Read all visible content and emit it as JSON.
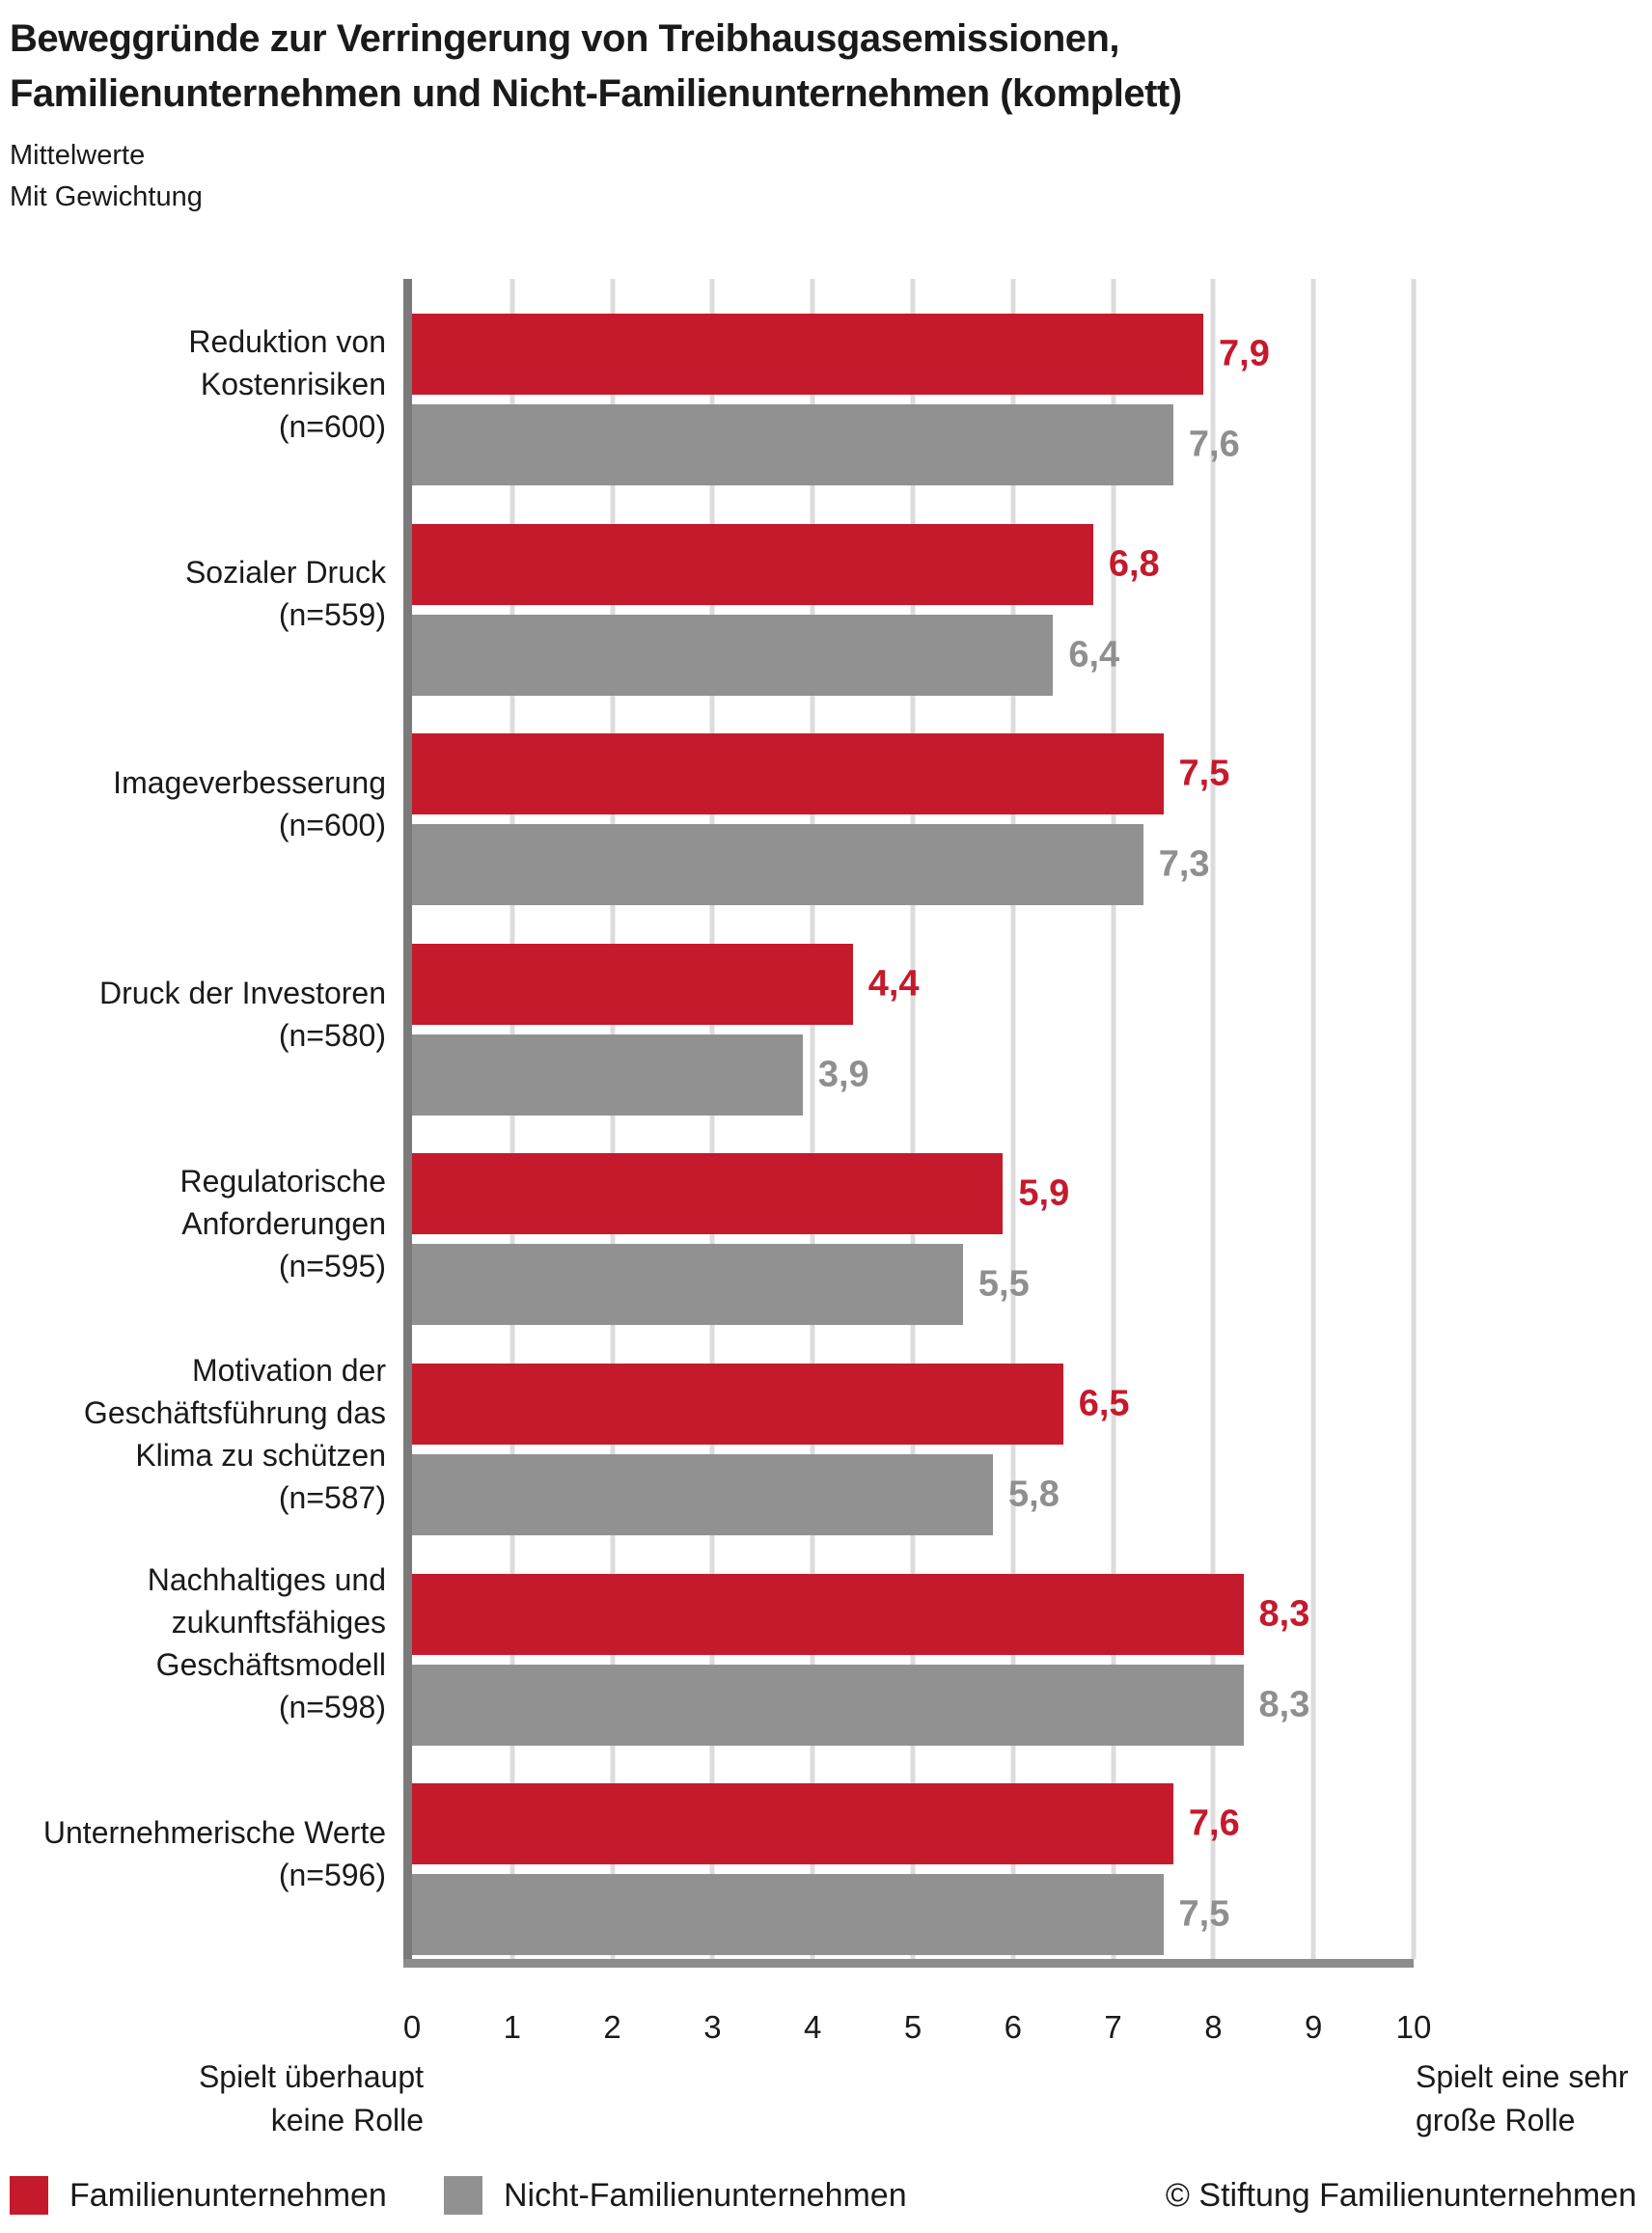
{
  "title": {
    "line1": "Beweggründe zur Verringerung von Treibhausgasemissionen,",
    "line2": "Familienunternehmen und Nicht-Familienunternehmen (komplett)"
  },
  "subtitle": {
    "line1": "Mittelwerte",
    "line2": "Mit Gewichtung"
  },
  "chart_data": {
    "type": "bar",
    "orientation": "horizontal",
    "xlim": [
      0,
      10
    ],
    "x_ticks": [
      "0",
      "1",
      "2",
      "3",
      "4",
      "5",
      "6",
      "7",
      "8",
      "9",
      "10"
    ],
    "grid": true,
    "legend_position": "bottom",
    "axis_caption_left": [
      "Spielt überhaupt",
      "keine Rolle"
    ],
    "axis_caption_right": [
      "Spielt eine sehr",
      "große Rolle"
    ],
    "categories": [
      {
        "label_lines": [
          "Reduktion von",
          "Kostenrisiken",
          "(n=600)"
        ]
      },
      {
        "label_lines": [
          "Sozialer Druck",
          "(n=559)"
        ]
      },
      {
        "label_lines": [
          "Imageverbesserung",
          "(n=600)"
        ]
      },
      {
        "label_lines": [
          "Druck der Investoren",
          "(n=580)"
        ]
      },
      {
        "label_lines": [
          "Regulatorische",
          "Anforderungen",
          "(n=595)"
        ]
      },
      {
        "label_lines": [
          "Motivation der",
          "Geschäftsführung das",
          "Klima zu schützen",
          "(n=587)"
        ]
      },
      {
        "label_lines": [
          "Nachhaltiges und",
          "zukunftsfähiges",
          "Geschäftsmodell",
          "(n=598)"
        ]
      },
      {
        "label_lines": [
          "Unternehmerische Werte",
          "(n=596)"
        ]
      }
    ],
    "series": [
      {
        "name": "Familienunternehmen",
        "color": "#C41A2C",
        "value_text_color": "#C41A2C",
        "values": [
          7.9,
          6.8,
          7.5,
          4.4,
          5.9,
          6.5,
          8.3,
          7.6
        ],
        "value_labels": [
          "7,9",
          "6,8",
          "7,5",
          "4,4",
          "5,9",
          "6,5",
          "8,3",
          "7,6"
        ]
      },
      {
        "name": "Nicht-Familienunternehmen",
        "color": "#919191",
        "value_text_color": "#8F8F8F",
        "values": [
          7.6,
          6.4,
          7.3,
          3.9,
          5.5,
          5.8,
          8.3,
          7.5
        ],
        "value_labels": [
          "7,6",
          "6,4",
          "7,3",
          "3,9",
          "5,5",
          "5,8",
          "8,3",
          "7,5"
        ]
      }
    ]
  },
  "legend": {
    "items": [
      {
        "label": "Familienunternehmen",
        "color": "#C41A2C"
      },
      {
        "label": "Nicht-Familienunternehmen",
        "color": "#919191"
      }
    ],
    "copyright": "© Stiftung Familienunternehmen"
  },
  "colors": {
    "text_dark": "#1A1A1A",
    "gridline": "#DCDCDC",
    "y_axis": "#7A7A7A",
    "x_axis": "#8C8C8C"
  }
}
